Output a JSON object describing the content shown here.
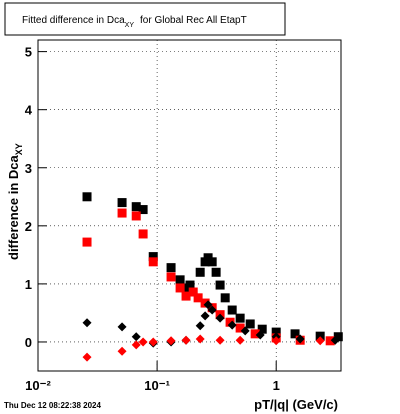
{
  "chart_data": {
    "type": "scatter",
    "title": [
      "Fitted difference in Dca",
      "XY",
      "for Global Rec All EtapT"
    ],
    "y_label": [
      "difference in Dca",
      "XY"
    ],
    "x_label": "pT/|q| (GeV/c)",
    "timestamp": "Thu Dec 12 08:22:38 2024",
    "log_x": true,
    "grid": true,
    "xlim": [
      0.01,
      3.5
    ],
    "ylim": [
      -0.5,
      5.2
    ],
    "xticks": [
      {
        "value": 0.01,
        "label": "10⁻²"
      },
      {
        "value": 0.1,
        "label": "10⁻¹"
      },
      1
    ],
    "yticks": [
      0,
      1,
      2,
      3,
      4,
      5
    ],
    "series": [
      {
        "name": "black squares",
        "color": "#000000",
        "marker": "square",
        "x": [
          0.0258,
          0.0508,
          0.0668,
          0.0763,
          0.0928,
          0.131,
          0.156,
          0.175,
          0.189,
          0.23,
          0.253,
          0.268,
          0.29,
          0.313,
          0.338,
          0.373,
          0.427,
          0.498,
          0.605,
          0.763,
          1,
          1.44,
          2.34,
          3.32
        ],
        "values": [
          2.5,
          2.4,
          2.33,
          2.28,
          1.47,
          1.28,
          1.07,
          0.93,
          0.98,
          1.2,
          1.38,
          1.45,
          1.38,
          1.2,
          0.98,
          0.76,
          0.55,
          0.41,
          0.31,
          0.22,
          0.17,
          0.14,
          0.1,
          0.09
        ]
      },
      {
        "name": "red squares",
        "color": "#ff0000",
        "marker": "square",
        "x": [
          0.0258,
          0.0508,
          0.0668,
          0.0763,
          0.0928,
          0.131,
          0.156,
          0.175,
          0.201,
          0.221,
          0.253,
          0.29,
          0.338,
          0.41,
          0.498,
          0.666,
          1,
          1.59,
          2.84
        ],
        "values": [
          1.72,
          2.22,
          2.17,
          1.86,
          1.38,
          1.12,
          0.93,
          0.79,
          0.86,
          0.76,
          0.67,
          0.59,
          0.47,
          0.34,
          0.24,
          0.14,
          0.07,
          0.03,
          0.02
        ]
      },
      {
        "name": "black diamonds",
        "color": "#000000",
        "marker": "diamond",
        "x": [
          0.0258,
          0.0508,
          0.0668,
          0.0928,
          0.131,
          0.175,
          0.23,
          0.253,
          0.268,
          0.29,
          0.338,
          0.427,
          0.549,
          0.734,
          1,
          1.59,
          3.13
        ],
        "values": [
          0.33,
          0.26,
          0.09,
          -0.02,
          0,
          0.03,
          0.28,
          0.45,
          0.64,
          0.55,
          0.41,
          0.29,
          0.19,
          0.12,
          0.09,
          0.05,
          0.03
        ]
      },
      {
        "name": "red diamonds",
        "color": "#ff0000",
        "marker": "diamond",
        "x": [
          0.0258,
          0.0508,
          0.0668,
          0.0763,
          0.0928,
          0.131,
          0.175,
          0.23,
          0.338,
          0.498,
          1,
          2.34
        ],
        "values": [
          -0.26,
          -0.16,
          -0.05,
          0,
          0,
          0.02,
          0.03,
          0.05,
          0.03,
          0.03,
          0.02,
          0.02
        ]
      }
    ]
  }
}
